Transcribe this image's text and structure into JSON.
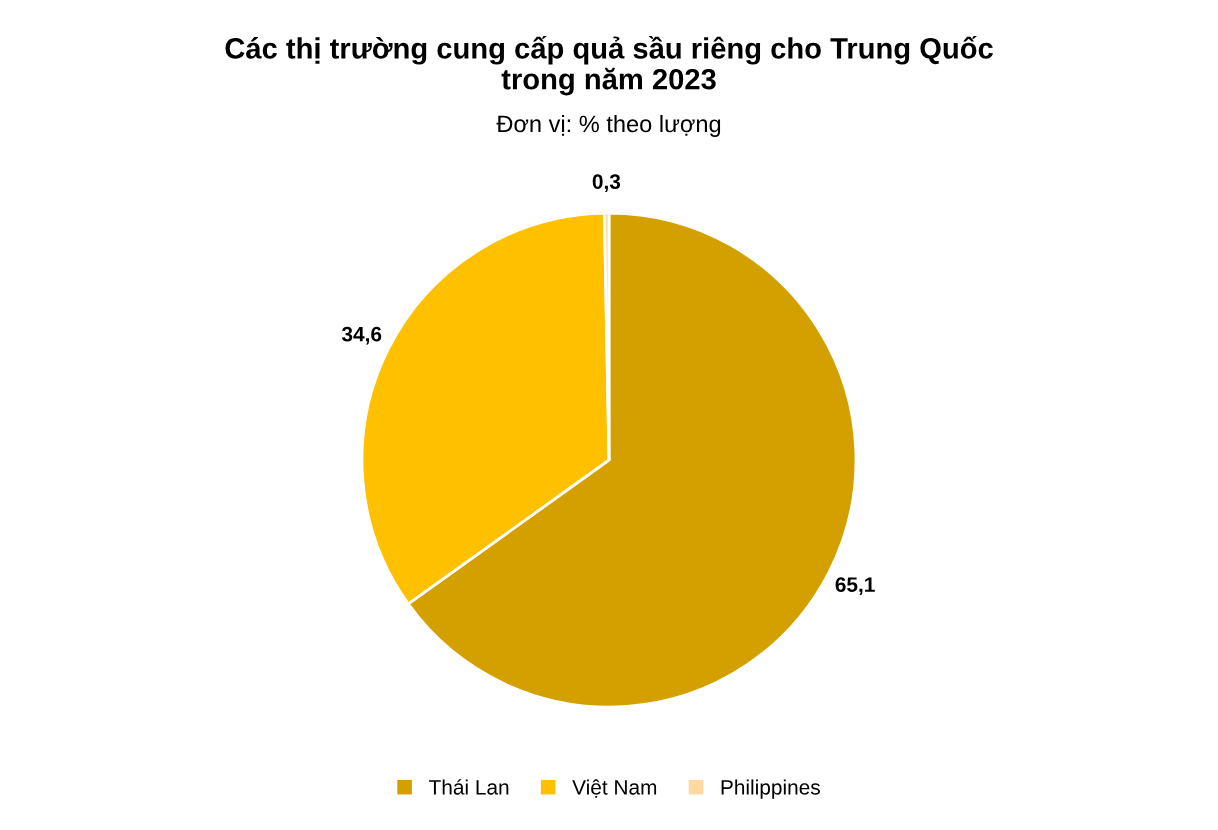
{
  "chart_data": {
    "type": "pie",
    "title": "Các thị trường cung cấp quả sầu riêng cho Trung Quốc\ntrong năm 2023",
    "subtitle": "Đơn vị: % theo lượng",
    "categories": [
      "Thái Lan",
      "Việt Nam",
      "Philippines"
    ],
    "values": [
      65.1,
      34.6,
      0.3
    ],
    "colors": [
      "#d4a000",
      "#ffc000",
      "#ffd9a0"
    ],
    "value_labels": [
      "65,1",
      "34,6",
      "0,3"
    ],
    "legend": "bottom"
  }
}
